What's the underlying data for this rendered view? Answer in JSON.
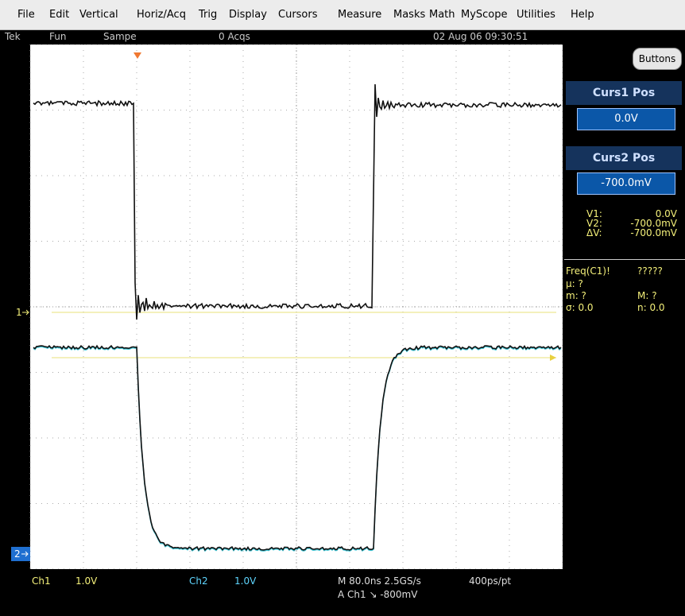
{
  "menu": [
    "File",
    "Edit",
    "Vertical",
    "Horiz/Acq",
    "Trig",
    "Display",
    "Cursors",
    "Measure",
    "Masks",
    "Math",
    "MyScope",
    "Utilities",
    "Help"
  ],
  "status": {
    "brand": "Tek",
    "mode": "Fun",
    "sample": "Sampe",
    "acqs": "0 Acqs",
    "datetime": "02 Aug 06 09:30:51"
  },
  "panel": {
    "button": "Buttons",
    "curs1_title": "Curs1 Pos",
    "curs1_value": "0.0V",
    "curs2_title": "Curs2 Pos",
    "curs2_value": "-700.0mV",
    "readouts": [
      {
        "label": "V1:",
        "value": "0.0V"
      },
      {
        "label": "V2:",
        "value": "-700.0mV"
      },
      {
        "label": "ΔV:",
        "value": "-700.0mV"
      }
    ]
  },
  "measure": {
    "title": "Freq(C1)!",
    "title_value": "?????",
    "rows": [
      [
        "µ: ?",
        ""
      ],
      [
        "m: ?",
        "M: ?"
      ],
      [
        "σ: 0.0",
        "n: 0.0"
      ]
    ]
  },
  "markers": {
    "ch1": "1",
    "ch2": "2"
  },
  "footer": {
    "ch1": "Ch1",
    "ch1_scale": "1.0V",
    "ch2": "Ch2",
    "ch2_scale": "1.0V",
    "timebase": "M 80.0ns 2.5GS/s",
    "record": "400ps/pt",
    "trigger": "A Ch1 ↘ -800mV"
  }
}
